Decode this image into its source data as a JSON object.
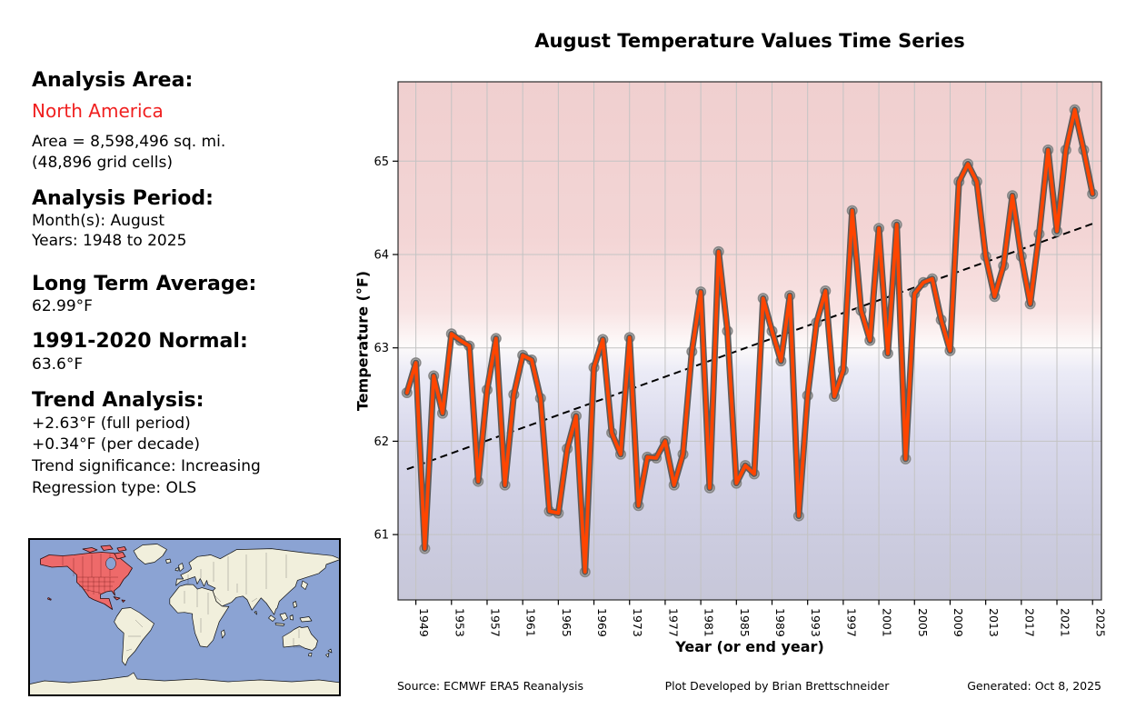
{
  "title": "August Temperature Values Time Series",
  "sidebar": {
    "analysis_area_label": "Analysis Area:",
    "analysis_area_value": "North America",
    "area_line1": "Area = 8,598,496 sq. mi.",
    "area_line2": "(48,896 grid cells)",
    "analysis_period_label": "Analysis Period:",
    "period_months": "Month(s): August",
    "period_years": "Years: 1948 to 2025",
    "long_term_average_label": "Long Term Average:",
    "long_term_average_value": "62.99°F",
    "normal_label": "1991-2020 Normal:",
    "normal_value": "63.6°F",
    "trend_label": "Trend Analysis:",
    "trend_full_period": "+2.63°F (full period)",
    "trend_per_decade": "+0.34°F (per decade)",
    "trend_significance": "Trend significance: Increasing",
    "regression_type": "Regression type: OLS"
  },
  "footer": {
    "source": "Source: ECMWF ERA5 Reanalysis",
    "credit": "Plot Developed by Brian Brettschneider",
    "generated": "Generated: Oct 8, 2025"
  },
  "map": {
    "highlight_region": "North America",
    "ocean_color": "#8ba3d3",
    "land_color": "#f1efdc",
    "highlight_color": "#ee6a6a"
  },
  "colors": {
    "series_line": "#ff4500",
    "line_casing": "#5c5c5c",
    "marker_fill": "#b3b1b1",
    "marker_edge": "#878787",
    "trend_line": "#000000",
    "grid": "#c3c3c3",
    "accent_red_text": "#f02020",
    "bg_warm_top": "#f0cfcf",
    "bg_cool_bottom": "#c7c7d9"
  },
  "chart_data": {
    "type": "line",
    "title": "August Temperature Values Time Series",
    "xlabel": "Year (or end year)",
    "ylabel": "Temperature (°F)",
    "grid": true,
    "legend": "none",
    "xlim": [
      1947,
      2026
    ],
    "ylim": [
      60.3,
      65.85
    ],
    "x_ticks": [
      1949,
      1953,
      1957,
      1961,
      1965,
      1969,
      1973,
      1977,
      1981,
      1985,
      1989,
      1993,
      1997,
      2001,
      2005,
      2009,
      2013,
      2017,
      2021,
      2025
    ],
    "y_ticks": [
      61,
      62,
      63,
      64,
      65
    ],
    "x": [
      1948,
      1949,
      1950,
      1951,
      1952,
      1953,
      1954,
      1955,
      1956,
      1957,
      1958,
      1959,
      1960,
      1961,
      1962,
      1963,
      1964,
      1965,
      1966,
      1967,
      1968,
      1969,
      1970,
      1971,
      1972,
      1973,
      1974,
      1975,
      1976,
      1977,
      1978,
      1979,
      1980,
      1981,
      1982,
      1983,
      1984,
      1985,
      1986,
      1987,
      1988,
      1989,
      1990,
      1991,
      1992,
      1993,
      1994,
      1995,
      1996,
      1997,
      1998,
      1999,
      2000,
      2001,
      2002,
      2003,
      2004,
      2005,
      2006,
      2007,
      2008,
      2009,
      2010,
      2011,
      2012,
      2013,
      2014,
      2015,
      2016,
      2017,
      2018,
      2019,
      2020,
      2021,
      2022,
      2023,
      2024,
      2025
    ],
    "values": [
      62.52,
      62.84,
      60.85,
      62.7,
      62.3,
      63.15,
      63.08,
      63.02,
      61.57,
      62.55,
      63.1,
      61.53,
      62.5,
      62.92,
      62.87,
      62.46,
      61.25,
      61.23,
      61.92,
      62.27,
      60.6,
      62.79,
      63.09,
      62.09,
      61.86,
      63.11,
      61.31,
      61.83,
      61.82,
      62.0,
      61.53,
      61.86,
      62.96,
      63.6,
      61.5,
      64.03,
      63.18,
      61.55,
      61.74,
      61.65,
      63.53,
      63.18,
      62.86,
      63.56,
      61.2,
      62.49,
      63.27,
      63.61,
      62.48,
      62.76,
      64.47,
      63.4,
      63.08,
      64.28,
      62.94,
      64.32,
      61.81,
      63.58,
      63.7,
      63.74,
      63.3,
      62.97,
      64.78,
      64.97,
      64.78,
      63.98,
      63.55,
      63.88,
      64.63,
      63.98,
      63.47,
      64.22,
      65.12,
      64.25,
      65.12,
      65.55,
      65.12,
      64.65
    ],
    "trend": {
      "type": "OLS",
      "style": "dashed",
      "start_year": 1948,
      "start_value": 61.7,
      "end_year": 2025,
      "end_value": 64.33
    }
  }
}
